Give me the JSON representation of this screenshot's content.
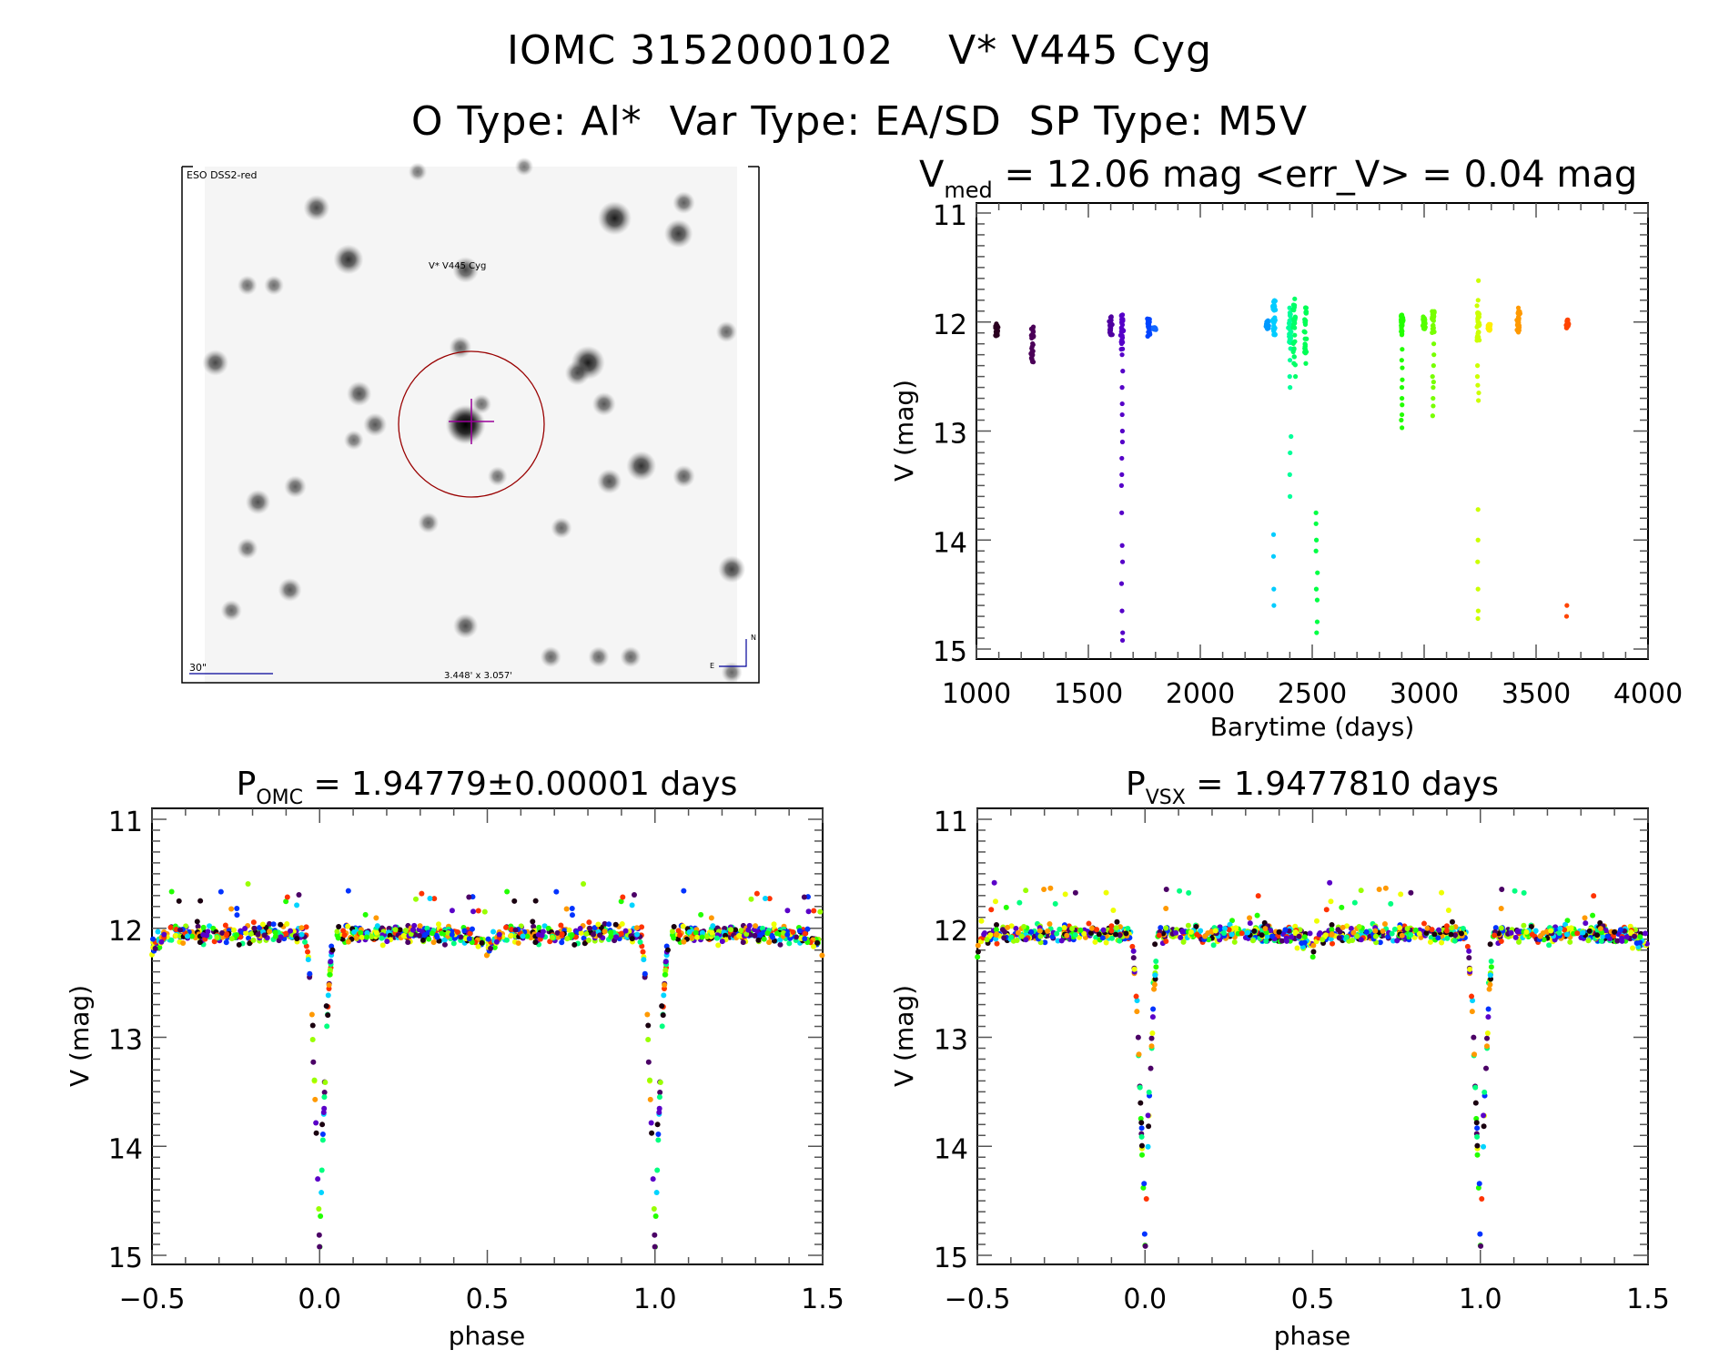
{
  "header": {
    "title_line1": "IOMC 3152000102    V* V445 Cyg",
    "title_line2": "O Type: Al*  Var Type: EA/SD  SP Type: M5V"
  },
  "finder": {
    "survey_label": "ESO DSS2-red",
    "target_label": "V* V445 Cyg",
    "scale_bar_label": "30\"",
    "field_size_label": "3.448' x 3.057'",
    "north_label": "N",
    "east_label": "E",
    "colors": {
      "overlay": "#000099",
      "target": "#cc0000",
      "crosshair": "#990099",
      "circle": "#990000"
    },
    "stars": [
      {
        "ra": 0.21,
        "dec": 0.08,
        "mag": 0.6
      },
      {
        "ra": 0.77,
        "dec": 0.1,
        "mag": 0.9
      },
      {
        "ra": 0.89,
        "dec": 0.13,
        "mag": 0.7
      },
      {
        "ra": 0.9,
        "dec": 0.07,
        "mag": 0.45
      },
      {
        "ra": 0.27,
        "dec": 0.18,
        "mag": 0.75
      },
      {
        "ra": 0.49,
        "dec": 0.2,
        "mag": 0.6
      },
      {
        "ra": 0.08,
        "dec": 0.23,
        "mag": 0.35
      },
      {
        "ra": 0.72,
        "dec": 0.38,
        "mag": 0.9
      },
      {
        "ra": 0.7,
        "dec": 0.4,
        "mag": 0.55
      },
      {
        "ra": 0.02,
        "dec": 0.38,
        "mag": 0.6
      },
      {
        "ra": 0.48,
        "dec": 0.35,
        "mag": 0.45
      },
      {
        "ra": 0.29,
        "dec": 0.44,
        "mag": 0.55
      },
      {
        "ra": 0.32,
        "dec": 0.5,
        "mag": 0.5
      },
      {
        "ra": 0.49,
        "dec": 0.5,
        "mag": 1.0
      },
      {
        "ra": 0.52,
        "dec": 0.46,
        "mag": 0.35
      },
      {
        "ra": 0.75,
        "dec": 0.46,
        "mag": 0.5
      },
      {
        "ra": 0.82,
        "dec": 0.58,
        "mag": 0.75
      },
      {
        "ra": 0.76,
        "dec": 0.61,
        "mag": 0.55
      },
      {
        "ra": 0.17,
        "dec": 0.62,
        "mag": 0.45
      },
      {
        "ra": 0.1,
        "dec": 0.65,
        "mag": 0.55
      },
      {
        "ra": 0.9,
        "dec": 0.6,
        "mag": 0.45
      },
      {
        "ra": 0.42,
        "dec": 0.69,
        "mag": 0.4
      },
      {
        "ra": 0.08,
        "dec": 0.74,
        "mag": 0.4
      },
      {
        "ra": 0.67,
        "dec": 0.7,
        "mag": 0.4
      },
      {
        "ra": 0.16,
        "dec": 0.82,
        "mag": 0.5
      },
      {
        "ra": 0.05,
        "dec": 0.86,
        "mag": 0.4
      },
      {
        "ra": 0.49,
        "dec": 0.89,
        "mag": 0.55
      },
      {
        "ra": 0.99,
        "dec": 0.78,
        "mag": 0.65
      },
      {
        "ra": 0.98,
        "dec": 0.32,
        "mag": 0.4
      },
      {
        "ra": 0.55,
        "dec": 0.6,
        "mag": 0.35
      },
      {
        "ra": 0.13,
        "dec": 0.23,
        "mag": 0.35
      },
      {
        "ra": 0.28,
        "dec": 0.53,
        "mag": 0.35
      },
      {
        "ra": 0.74,
        "dec": 0.95,
        "mag": 0.4
      },
      {
        "ra": 0.8,
        "dec": 0.95,
        "mag": 0.4
      },
      {
        "ra": 0.65,
        "dec": 0.95,
        "mag": 0.4
      },
      {
        "ra": 0.99,
        "dec": 0.98,
        "mag": 0.4
      },
      {
        "ra": 0.6,
        "dec": 0.0,
        "mag": 0.3
      },
      {
        "ra": 0.4,
        "dec": 0.01,
        "mag": 0.3
      }
    ],
    "target_position": {
      "ra": 0.49,
      "dec": 0.5
    }
  },
  "chart_data": [
    {
      "type": "scatter",
      "id": "lightcurve",
      "title_main": "V",
      "title_sub": "med",
      "title_rest": " = 12.06 mag <err_V> = 0.04 mag",
      "xlabel": "Barytime (days)",
      "ylabel": "V (mag)",
      "xlim": [
        1000,
        4000
      ],
      "ylim": [
        11,
        15
      ],
      "y_inverted": true,
      "xticks": [
        "1000",
        "1500",
        "2000",
        "2500",
        "3000",
        "3500",
        "4000"
      ],
      "xtick_values": [
        1000,
        1500,
        2000,
        2500,
        3000,
        3500,
        4000
      ],
      "yticks": [
        "11",
        "12",
        "13",
        "14",
        "15"
      ],
      "ytick_values": [
        11,
        12,
        13,
        14,
        15
      ],
      "color_scale": [
        "#1a0010",
        "#4b0066",
        "#5a00c8",
        "#0033ff",
        "#00d4ff",
        "#00ff80",
        "#22ff00",
        "#99ff00",
        "#eeff00",
        "#ff9900",
        "#ff3300"
      ],
      "groups": [
        {
          "t": 1090,
          "mag_min": 12.0,
          "mag_max": 12.15,
          "color": "#2a0020",
          "dips": []
        },
        {
          "t": 1250,
          "mag_min": 12.03,
          "mag_max": 12.37,
          "color": "#4b0058",
          "dips": []
        },
        {
          "t": 1600,
          "mag_min": 11.95,
          "mag_max": 12.12,
          "color": "#4f00a0",
          "dips": []
        },
        {
          "t": 1650,
          "mag_min": 11.93,
          "mag_max": 12.25,
          "color": "#5500c8",
          "dips": [
            12.3,
            12.45,
            12.6,
            12.75,
            12.85,
            13.0,
            13.1,
            13.25,
            13.4,
            13.5,
            13.75,
            14.05,
            14.2,
            14.4,
            14.65,
            14.85,
            14.92
          ]
        },
        {
          "t": 1770,
          "mag_min": 11.97,
          "mag_max": 12.15,
          "color": "#0044ff",
          "dips": []
        },
        {
          "t": 1795,
          "mag_min": 12.05,
          "mag_max": 12.07,
          "color": "#1166ff",
          "dips": []
        },
        {
          "t": 2300,
          "mag_min": 11.98,
          "mag_max": 12.07,
          "color": "#0099ff",
          "dips": []
        },
        {
          "t": 2330,
          "mag_min": 11.8,
          "mag_max": 12.15,
          "color": "#00ccff",
          "dips": [
            13.95,
            14.15,
            14.45,
            14.6
          ]
        },
        {
          "t": 2400,
          "mag_min": 11.87,
          "mag_max": 12.25,
          "color": "#00ff99",
          "dips": [
            12.35,
            12.5,
            12.6,
            13.05,
            13.2,
            13.4,
            13.6
          ]
        },
        {
          "t": 2420,
          "mag_min": 11.78,
          "mag_max": 12.4,
          "color": "#00ff66",
          "dips": [
            12.5
          ]
        },
        {
          "t": 2470,
          "mag_min": 11.85,
          "mag_max": 12.3,
          "color": "#00ff55",
          "dips": [
            12.38
          ]
        },
        {
          "t": 2520,
          "mag_min": 13.75,
          "mag_max": 13.75,
          "color": "#00ff44",
          "dips": [
            13.75,
            13.85,
            14.0,
            14.1,
            14.3,
            14.45,
            14.55,
            14.75,
            14.85
          ]
        },
        {
          "t": 2900,
          "mag_min": 11.93,
          "mag_max": 12.12,
          "color": "#22ff00",
          "dips": [
            12.25,
            12.35,
            12.42,
            12.53,
            12.6,
            12.7,
            12.76,
            12.85,
            12.9,
            12.97
          ]
        },
        {
          "t": 3000,
          "mag_min": 11.95,
          "mag_max": 12.08,
          "color": "#55ff00",
          "dips": []
        },
        {
          "t": 3040,
          "mag_min": 11.9,
          "mag_max": 12.1,
          "color": "#77ff00",
          "dips": [
            12.2,
            12.3,
            12.4,
            12.5,
            12.55,
            12.6,
            12.7,
            12.77,
            12.86
          ]
        },
        {
          "t": 3240,
          "mag_min": 11.88,
          "mag_max": 12.18,
          "color": "#ccff00",
          "dips": [
            11.62,
            11.8,
            11.85,
            12.4,
            12.5,
            12.58,
            12.65,
            12.72,
            13.72,
            14.0,
            14.2,
            14.45,
            14.65,
            14.72
          ]
        },
        {
          "t": 3290,
          "mag_min": 12.02,
          "mag_max": 12.08,
          "color": "#ffee00",
          "dips": []
        },
        {
          "t": 3420,
          "mag_min": 11.9,
          "mag_max": 12.1,
          "color": "#ff9900",
          "dips": [
            11.87
          ]
        },
        {
          "t": 3640,
          "mag_min": 11.98,
          "mag_max": 12.06,
          "color": "#ff4400",
          "dips": [
            14.6,
            14.7
          ]
        }
      ]
    },
    {
      "type": "scatter",
      "id": "phase_omc",
      "title_main": "P",
      "title_sub": "OMC",
      "title_rest": " = 1.94779±0.00001 days",
      "period_days": 1.94779,
      "period_err_days": 1e-05,
      "xlabel": "phase",
      "ylabel": "V (mag)",
      "xlim": [
        -0.5,
        1.5
      ],
      "ylim": [
        11,
        15
      ],
      "y_inverted": true,
      "xticks": [
        "−0.5",
        "0.0",
        "0.5",
        "1.0",
        "1.5"
      ],
      "xtick_values": [
        -0.5,
        0.0,
        0.5,
        1.0,
        1.5
      ],
      "yticks": [
        "11",
        "12",
        "13",
        "14",
        "15"
      ],
      "ytick_values": [
        11,
        12,
        13,
        14,
        15
      ],
      "model": {
        "baseline_mag": 12.05,
        "primary_eclipse_phase": 0.0,
        "primary_depth_mag": 2.9,
        "primary_half_width_phase": 0.045,
        "secondary_eclipse_phase": 0.5,
        "secondary_depth_mag": 0.12
      }
    },
    {
      "type": "scatter",
      "id": "phase_vsx",
      "title_main": "P",
      "title_sub": "VSX",
      "title_rest": " = 1.9477810 days",
      "period_days": 1.947781,
      "xlabel": "phase",
      "ylabel": "V (mag)",
      "xlim": [
        -0.5,
        1.5
      ],
      "ylim": [
        11,
        15
      ],
      "y_inverted": true,
      "xticks": [
        "−0.5",
        "0.0",
        "0.5",
        "1.0",
        "1.5"
      ],
      "xtick_values": [
        -0.5,
        0.0,
        0.5,
        1.0,
        1.5
      ],
      "yticks": [
        "11",
        "12",
        "13",
        "14",
        "15"
      ],
      "ytick_values": [
        11,
        12,
        13,
        14,
        15
      ],
      "model": {
        "baseline_mag": 12.05,
        "primary_eclipse_phase": 0.0,
        "primary_depth_mag": 2.9,
        "primary_half_width_phase": 0.045,
        "secondary_eclipse_phase": 0.5,
        "secondary_depth_mag": 0.12
      }
    }
  ]
}
